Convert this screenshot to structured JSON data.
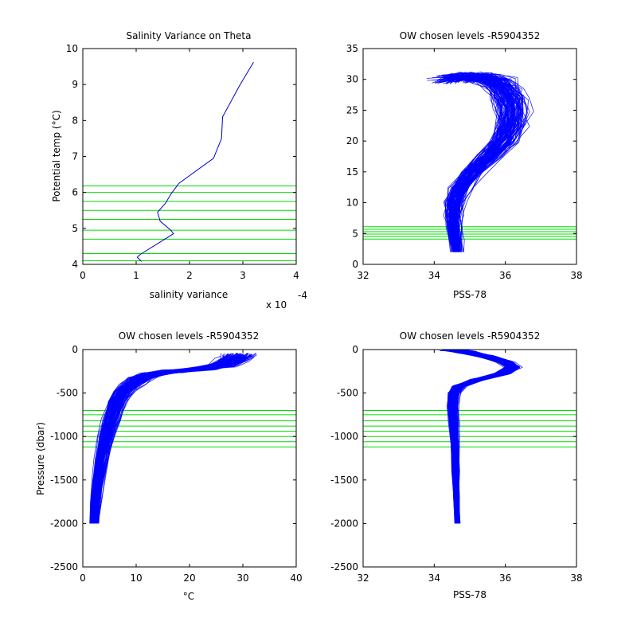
{
  "chart_data": [
    {
      "id": "p1",
      "type": "line",
      "title": "Salinity Variance on Theta",
      "xlabel": "salinity variance",
      "ylabel": "Potential temp (°C)",
      "x_multiplier_text": "x 10",
      "x_multiplier_exp": "-4",
      "xlim": [
        0,
        4
      ],
      "ylim": [
        4,
        10
      ],
      "xticks": [
        0,
        1,
        2,
        3,
        4
      ],
      "xticklabels": [
        "0",
        "1",
        "2",
        "3",
        "4"
      ],
      "yticks": [
        4,
        5,
        6,
        7,
        8,
        9,
        10
      ],
      "yticklabels": [
        "4",
        "5",
        "6",
        "7",
        "8",
        "9",
        "10"
      ],
      "line_color": "#0000cc",
      "level_color": "#00dd00",
      "series": [
        {
          "x": [
            1.1,
            1.02,
            1.08,
            1.7,
            1.65,
            1.45,
            1.4,
            1.55,
            1.65,
            1.8,
            2.45,
            2.6,
            2.62,
            2.95,
            3.2
          ],
          "y": [
            4.08,
            4.2,
            4.28,
            4.85,
            4.95,
            5.2,
            5.45,
            5.7,
            5.95,
            6.25,
            6.95,
            7.5,
            8.1,
            9.0,
            9.62
          ]
        }
      ],
      "levels": [
        4.1,
        4.3,
        4.7,
        4.95,
        5.25,
        5.5,
        5.75,
        6.0,
        6.18
      ]
    },
    {
      "id": "p2",
      "type": "line",
      "title": "OW chosen levels -R5904352",
      "xlabel": "PSS-78",
      "ylabel": "",
      "xlim": [
        32,
        38
      ],
      "ylim": [
        0,
        35
      ],
      "xticks": [
        32,
        34,
        36,
        38
      ],
      "xticklabels": [
        "32",
        "34",
        "36",
        "38"
      ],
      "yticks": [
        0,
        5,
        10,
        15,
        20,
        25,
        30,
        35
      ],
      "yticklabels": [
        "0",
        "5",
        "10",
        "15",
        "20",
        "25",
        "30",
        "35"
      ],
      "line_color": "#0000ff",
      "level_color": "#00dd00",
      "profile": {
        "x": [
          34.65,
          34.6,
          34.56,
          34.55,
          34.58,
          34.75,
          35.1,
          35.55,
          35.95,
          36.15,
          36.2,
          36.12,
          35.95,
          35.7,
          35.4,
          35.0,
          34.55
        ],
        "y": [
          2.0,
          4.0,
          6.0,
          8.0,
          10.0,
          12.5,
          15.0,
          17.5,
          20.0,
          22.5,
          25.0,
          27.0,
          28.5,
          29.7,
          30.3,
          30.5,
          30.0
        ],
        "count": 120,
        "spread_x": 0.28,
        "spread_y": 1.0,
        "shift": 0.12
      },
      "levels": [
        4.1,
        4.5,
        4.9,
        5.3,
        5.7,
        6.1
      ]
    },
    {
      "id": "p3",
      "type": "line",
      "title": "OW chosen levels -R5904352",
      "xlabel": "°C",
      "ylabel": "Pressure (dbar)",
      "xlim": [
        0,
        40
      ],
      "ylim": [
        -2500,
        0
      ],
      "xticks": [
        0,
        10,
        20,
        30,
        40
      ],
      "xticklabels": [
        "0",
        "10",
        "20",
        "30",
        "40"
      ],
      "yticks": [
        -2500,
        -2000,
        -1500,
        -1000,
        -500,
        0
      ],
      "yticklabels": [
        "-2500",
        "-2000",
        "-1500",
        "-1000",
        "-500",
        "0"
      ],
      "line_color": "#0000ff",
      "level_color": "#00dd00",
      "profile": {
        "x": [
          2.0,
          2.3,
          2.8,
          3.5,
          4.3,
          5.2,
          6.2,
          7.5,
          9.0,
          10.5,
          13.0,
          17.0,
          22.0,
          26.0,
          28.0,
          29.0
        ],
        "y": [
          -2000,
          -1750,
          -1500,
          -1250,
          -1000,
          -800,
          -600,
          -480,
          -400,
          -330,
          -280,
          -250,
          -220,
          -180,
          -120,
          -60
        ],
        "count": 120,
        "spread_x": 1.0,
        "spread_y": 30,
        "shift": 0.6
      },
      "levels": [
        -700,
        -750,
        -820,
        -880,
        -940,
        -1000,
        -1060,
        -1120
      ]
    },
    {
      "id": "p4",
      "type": "line",
      "title": "OW chosen levels -R5904352",
      "xlabel": "PSS-78",
      "ylabel": "",
      "xlim": [
        32,
        38
      ],
      "ylim": [
        -2500,
        0
      ],
      "xticks": [
        32,
        34,
        36,
        38
      ],
      "xticklabels": [
        "32",
        "34",
        "36",
        "38"
      ],
      "yticks": [
        -2500,
        -2000,
        -1500,
        -1000,
        -500,
        0
      ],
      "yticklabels": [
        "-2500",
        "-2000",
        "-1500",
        "-1000",
        "-500",
        "0"
      ],
      "line_color": "#0000ff",
      "level_color": "#00dd00",
      "profile": {
        "x": [
          34.65,
          34.63,
          34.6,
          34.57,
          34.55,
          34.52,
          34.55,
          34.7,
          35.2,
          35.9,
          36.2,
          36.0,
          35.5,
          34.9,
          34.4
        ],
        "y": [
          -2000,
          -1700,
          -1400,
          -1100,
          -850,
          -650,
          -500,
          -420,
          -350,
          -280,
          -200,
          -140,
          -80,
          -30,
          0
        ],
        "count": 120,
        "spread_x": 0.12,
        "spread_y": 20,
        "shift": 0.05
      },
      "levels": [
        -700,
        -750,
        -820,
        -880,
        -940,
        -1000,
        -1060,
        -1120
      ]
    }
  ]
}
